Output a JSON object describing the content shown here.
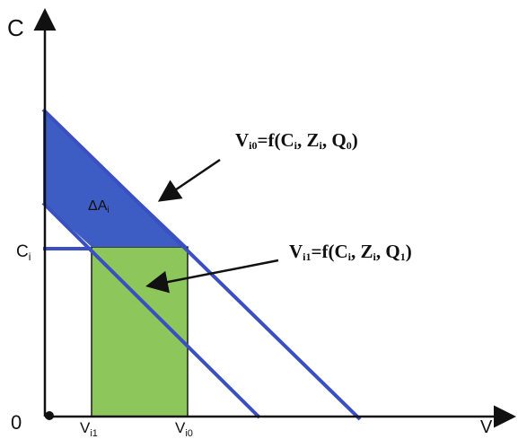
{
  "axes": {
    "y_label": "C",
    "x_label": "V",
    "origin_label": "0",
    "ci_label": "C",
    "ci_sub": "i",
    "vi1_label": "V",
    "vi1_sub": "i1",
    "vi0_label": "V",
    "vi0_sub": "i0"
  },
  "region_label": {
    "prefix": "ΔA",
    "sub": "i"
  },
  "equations": {
    "upper": {
      "v": "V",
      "v_sub": "i0",
      "mid1": "=f(C",
      "c_sub": "i",
      "mid2": ", Z",
      "z_sub": "i",
      "mid3": ", Q",
      "q_sub": "0",
      "end": ")"
    },
    "lower": {
      "v": "V",
      "v_sub": "i1",
      "mid1": "=f(C",
      "c_sub": "i",
      "mid2": ", Z",
      "z_sub": "i",
      "mid3": ", Q",
      "q_sub": "1",
      "end": ")"
    }
  },
  "colors": {
    "axis": "#111111",
    "line": "#3a4fc0",
    "triangle_fill": "#3d5cc4",
    "rect_fill": "#8dc65a",
    "rect_stroke": "#1a1a1a"
  }
}
